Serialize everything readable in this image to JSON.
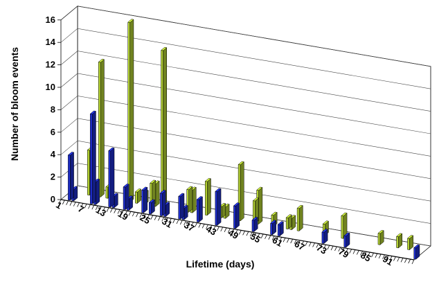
{
  "chart_data": {
    "type": "bar",
    "title": "",
    "xlabel": "Lifetime (days)",
    "ylabel": "Number of bloom events",
    "ylim": [
      0,
      16
    ],
    "yticks": [
      0,
      2,
      4,
      6,
      8,
      10,
      12,
      14,
      16
    ],
    "xtick_labels": [
      "1",
      "7",
      "13",
      "19",
      "25",
      "31",
      "37",
      "43",
      "49",
      "55",
      "61",
      "67",
      "73",
      "79",
      "85",
      "91"
    ],
    "grid": true,
    "legend": "none",
    "series": [
      {
        "color": "#b5d334",
        "points": [
          {
            "x": 6,
            "y": 4
          },
          {
            "x": 9,
            "y": 12
          },
          {
            "x": 11,
            "y": 1
          },
          {
            "x": 17,
            "y": 16
          },
          {
            "x": 19,
            "y": 1
          },
          {
            "x": 21,
            "y": 1
          },
          {
            "x": 23,
            "y": 2
          },
          {
            "x": 24,
            "y": 2
          },
          {
            "x": 26,
            "y": 14
          },
          {
            "x": 33,
            "y": 2
          },
          {
            "x": 34,
            "y": 2
          },
          {
            "x": 38,
            "y": 3
          },
          {
            "x": 42,
            "y": 1
          },
          {
            "x": 43,
            "y": 1
          },
          {
            "x": 47,
            "y": 5
          },
          {
            "x": 51,
            "y": 2
          },
          {
            "x": 52,
            "y": 3
          },
          {
            "x": 56,
            "y": 1
          },
          {
            "x": 60,
            "y": 1
          },
          {
            "x": 61,
            "y": 1
          },
          {
            "x": 63,
            "y": 2
          },
          {
            "x": 70,
            "y": 1
          },
          {
            "x": 75,
            "y": 2
          },
          {
            "x": 85,
            "y": 1
          },
          {
            "x": 90,
            "y": 1
          },
          {
            "x": 93,
            "y": 1
          }
        ]
      },
      {
        "color": "#1f2fd0",
        "points": [
          {
            "x": 3,
            "y": 4
          },
          {
            "x": 4,
            "y": 1
          },
          {
            "x": 9,
            "y": 8
          },
          {
            "x": 10,
            "y": 2
          },
          {
            "x": 14,
            "y": 5
          },
          {
            "x": 15,
            "y": 1
          },
          {
            "x": 18,
            "y": 2
          },
          {
            "x": 19,
            "y": 1
          },
          {
            "x": 23,
            "y": 2
          },
          {
            "x": 25,
            "y": 1
          },
          {
            "x": 28,
            "y": 2
          },
          {
            "x": 29,
            "y": 1
          },
          {
            "x": 33,
            "y": 2
          },
          {
            "x": 34,
            "y": 1
          },
          {
            "x": 38,
            "y": 2
          },
          {
            "x": 43,
            "y": 3
          },
          {
            "x": 48,
            "y": 2
          },
          {
            "x": 53,
            "y": 1
          },
          {
            "x": 58,
            "y": 1
          },
          {
            "x": 60,
            "y": 1
          },
          {
            "x": 72,
            "y": 1
          },
          {
            "x": 78,
            "y": 1
          },
          {
            "x": 97,
            "y": 1
          }
        ]
      }
    ]
  }
}
